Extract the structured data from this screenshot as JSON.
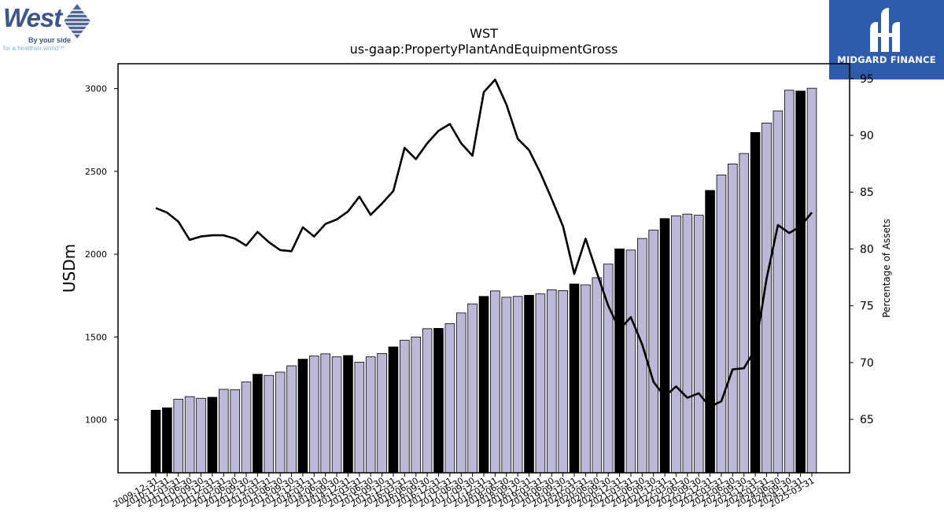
{
  "logos": {
    "left": {
      "wordmark": "West",
      "tagline_1": "By your side",
      "tagline_2": "for a healthier world™"
    },
    "right": {
      "text": "MIDGARD FINANCE"
    }
  },
  "colors": {
    "bar_light": "#bcb8d8",
    "bar_dark": "#000000",
    "line": "#000000"
  },
  "chart_data": {
    "type": "bar",
    "title": "WST",
    "subtitle": "us-gaap:PropertyPlantAndEquipmentGross",
    "ylabel": "USDm",
    "y2label": "Percentage of Assets",
    "ylim": [
      680,
      3150
    ],
    "y2lim": [
      60.3,
      96.3
    ],
    "yticks": [
      1000,
      1500,
      2000,
      2500,
      3000
    ],
    "y2ticks": [
      65,
      70,
      75,
      80,
      85,
      90,
      95
    ],
    "grid": false,
    "categories": [
      "2009-12-31",
      "2010-12-31",
      "2011-03-31",
      "2011-06-30",
      "2011-09-30",
      "2011-12-31",
      "2012-03-31",
      "2012-06-30",
      "2012-09-30",
      "2012-12-31",
      "2013-03-31",
      "2013-06-30",
      "2013-09-30",
      "2013-12-31",
      "2014-03-31",
      "2014-06-30",
      "2014-09-30",
      "2014-12-31",
      "2015-03-31",
      "2015-06-30",
      "2015-09-30",
      "2015-12-31",
      "2016-03-31",
      "2016-06-30",
      "2016-09-30",
      "2016-12-31",
      "2017-03-31",
      "2017-06-30",
      "2017-09-30",
      "2017-12-31",
      "2018-03-31",
      "2018-06-30",
      "2018-09-30",
      "2018-12-31",
      "2019-03-31",
      "2019-06-30",
      "2019-09-30",
      "2019-12-31",
      "2020-03-31",
      "2020-06-30",
      "2020-09-30",
      "2020-12-31",
      "2021-03-31",
      "2021-06-30",
      "2021-09-30",
      "2021-12-31",
      "2022-03-31",
      "2022-06-30",
      "2022-09-30",
      "2022-12-31",
      "2023-03-31",
      "2023-06-30",
      "2023-09-30",
      "2023-12-31",
      "2024-03-31",
      "2024-06-30",
      "2024-09-30",
      "2024-12-31",
      "2025-03-31"
    ],
    "series": [
      {
        "kind": "bar",
        "values": [
          1058,
          1072,
          1124,
          1140,
          1130,
          1136,
          1184,
          1182,
          1228,
          1275,
          1268,
          1288,
          1326,
          1366,
          1385,
          1398,
          1380,
          1388,
          1348,
          1380,
          1400,
          1440,
          1480,
          1500,
          1550,
          1552,
          1580,
          1645,
          1700,
          1745,
          1778,
          1740,
          1745,
          1752,
          1760,
          1785,
          1780,
          1820,
          1815,
          1858,
          1940,
          2032,
          2025,
          2095,
          2145,
          2215,
          2232,
          2242,
          2235,
          2385,
          2478,
          2545,
          2608,
          2735,
          2792,
          2865,
          2990,
          2985,
          3002
        ],
        "period_end_year": [
          true,
          true,
          false,
          false,
          false,
          true,
          false,
          false,
          false,
          true,
          false,
          false,
          false,
          true,
          false,
          false,
          false,
          true,
          false,
          false,
          false,
          true,
          false,
          false,
          false,
          true,
          false,
          false,
          false,
          true,
          false,
          false,
          false,
          true,
          false,
          false,
          false,
          true,
          false,
          false,
          false,
          true,
          false,
          false,
          false,
          true,
          false,
          false,
          false,
          true,
          false,
          false,
          false,
          true,
          false,
          false,
          false,
          true,
          false
        ]
      },
      {
        "kind": "line",
        "axis": "right",
        "values": [
          83.6,
          83.2,
          82.4,
          80.8,
          81.1,
          81.2,
          81.2,
          80.9,
          80.3,
          81.5,
          80.6,
          79.9,
          79.8,
          81.9,
          81.1,
          82.2,
          82.6,
          83.3,
          84.6,
          83.0,
          84.0,
          85.1,
          88.9,
          87.9,
          89.3,
          90.4,
          91.0,
          89.3,
          88.2,
          93.8,
          94.9,
          92.7,
          89.7,
          88.7,
          86.7,
          84.4,
          82.0,
          77.8,
          80.9,
          77.9,
          75.0,
          72.9,
          74.0,
          71.6,
          68.3,
          67.0,
          67.9,
          66.9,
          67.3,
          66.1,
          66.6,
          69.4,
          69.5,
          71.2,
          77.4,
          82.1,
          81.4,
          82.0,
          83.2
        ]
      }
    ]
  }
}
